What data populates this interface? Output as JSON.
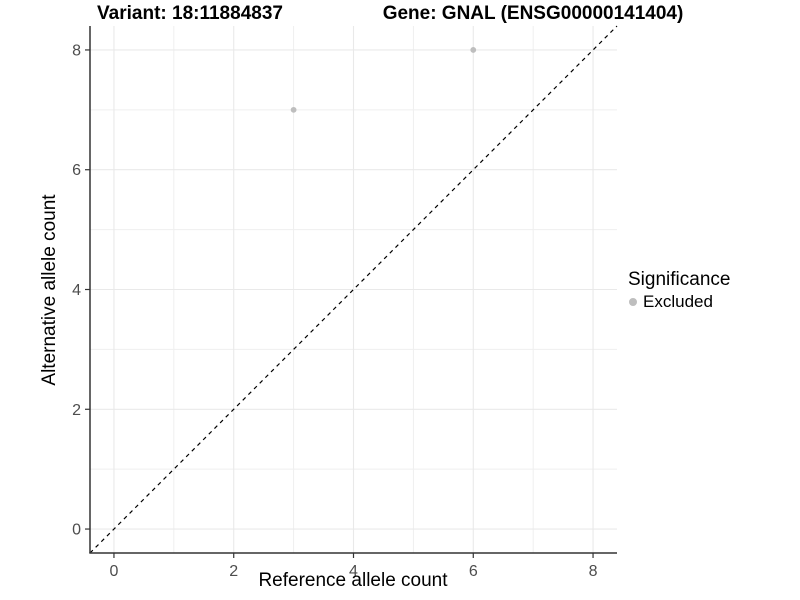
{
  "chart_data": {
    "type": "scatter",
    "titles": {
      "variant": "Variant: 18:11884837",
      "gene": "Gene: GNAL (ENSG00000141404)"
    },
    "xlabel": "Reference allele count",
    "ylabel": "Alternative allele count",
    "xlim": [
      -0.4,
      8.4
    ],
    "ylim": [
      -0.4,
      8.4
    ],
    "x_ticks": [
      0,
      2,
      4,
      6,
      8
    ],
    "y_ticks": [
      0,
      2,
      4,
      6,
      8
    ],
    "x_minor_ticks": [
      1,
      3,
      5,
      7
    ],
    "y_minor_ticks": [
      1,
      3,
      5,
      7
    ],
    "grid": true,
    "legend_position": "right",
    "series": [
      {
        "name": "Excluded",
        "color": "#bebebe",
        "points": [
          {
            "x": 3,
            "y": 7
          },
          {
            "x": 6,
            "y": 8
          }
        ]
      }
    ],
    "reference_line": {
      "style": "dashed",
      "color": "#000000",
      "from": [
        -0.4,
        -0.4
      ],
      "to": [
        8.4,
        8.4
      ]
    },
    "legend": {
      "title": "Significance",
      "entries": [
        {
          "label": "Excluded",
          "color": "#bebebe"
        }
      ]
    },
    "colors": {
      "background": "#ffffff",
      "grid_major": "#e9e9e9",
      "grid_minor": "#efefef",
      "axis": "#333333",
      "tick_label": "#4d4d4d",
      "title_text": "#000000",
      "point": "#bebebe"
    }
  }
}
